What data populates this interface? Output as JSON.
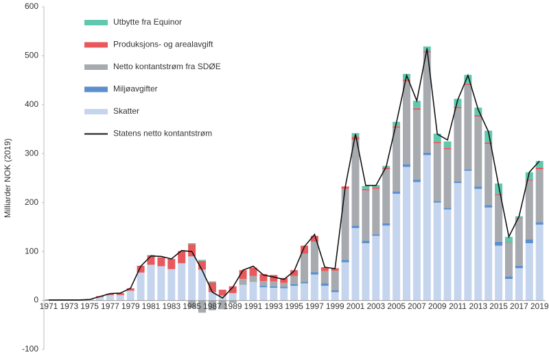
{
  "chart_data": {
    "type": "bar",
    "ylabel": "Milliarder NOK (2019)",
    "categories": [
      "1971",
      null,
      "1973",
      null,
      "1975",
      null,
      "1977",
      null,
      "1979",
      null,
      "1981",
      null,
      "1983",
      null,
      "1985",
      null,
      "1987",
      null,
      "1989",
      null,
      "1991",
      null,
      "1993",
      null,
      "1995",
      null,
      "1997",
      null,
      "1999",
      null,
      "2001",
      null,
      "2003",
      null,
      "2005",
      null,
      "2007",
      null,
      "2009",
      null,
      "2011",
      null,
      "2013",
      null,
      "2015",
      null,
      "2017",
      null,
      "2019"
    ],
    "ylim": [
      -100,
      600
    ],
    "yticks": [
      -100,
      0,
      100,
      200,
      300,
      400,
      500,
      600
    ],
    "legend": "upper left",
    "series": [
      {
        "name": "Skatter",
        "color": "#c6d5ee",
        "values": [
          0,
          0,
          0,
          1,
          2,
          7,
          11,
          11,
          20,
          57,
          73,
          70,
          64,
          76,
          90,
          63,
          17,
          10,
          15,
          32,
          38,
          27,
          26,
          25,
          30,
          35,
          53,
          30,
          17,
          78,
          148,
          117,
          132,
          153,
          218,
          273,
          242,
          297,
          200,
          186,
          240,
          265,
          228,
          190,
          112,
          44,
          66,
          117,
          155
        ]
      },
      {
        "name": "Miljøavgifter",
        "color": "#5b8fce",
        "values": [
          0,
          0,
          0,
          0,
          0,
          0,
          0,
          0,
          0,
          0,
          0,
          0,
          0,
          0,
          0,
          0,
          0,
          0,
          0,
          0,
          0,
          3,
          3,
          3,
          3,
          3,
          5,
          5,
          4,
          5,
          5,
          5,
          3,
          5,
          5,
          5,
          5,
          5,
          3,
          3,
          3,
          3,
          5,
          5,
          8,
          5,
          5,
          8,
          5
        ]
      },
      {
        "name": "Netto kontantstrøm fra SDØE",
        "color": "#a7aaae",
        "values": [
          0,
          0,
          0,
          0,
          0,
          0,
          0,
          0,
          0,
          0,
          0,
          0,
          0,
          0,
          -15,
          -25,
          -20,
          -18,
          -5,
          12,
          12,
          10,
          10,
          8,
          17,
          58,
          62,
          25,
          40,
          145,
          175,
          103,
          93,
          110,
          130,
          170,
          143,
          205,
          118,
          120,
          150,
          172,
          143,
          125,
          95,
          68,
          96,
          120,
          108
        ]
      },
      {
        "name": "Produksjons- og arealavgift",
        "color": "#e8595d",
        "values": [
          2,
          2,
          2,
          1,
          1,
          2,
          3,
          4,
          5,
          14,
          18,
          18,
          21,
          25,
          25,
          18,
          20,
          12,
          14,
          18,
          17,
          14,
          13,
          10,
          12,
          16,
          12,
          8,
          5,
          5,
          7,
          3,
          3,
          3,
          3,
          3,
          3,
          3,
          3,
          3,
          3,
          3,
          3,
          3,
          2,
          1,
          1,
          2,
          3
        ]
      },
      {
        "name": "Utbytte fra Equinor",
        "color": "#5fc8ae",
        "values": [
          0,
          0,
          0,
          0,
          0,
          0,
          0,
          0,
          0,
          0,
          2,
          0,
          0,
          0,
          2,
          2,
          2,
          0,
          0,
          0,
          0,
          0,
          0,
          0,
          0,
          0,
          0,
          0,
          0,
          0,
          7,
          6,
          5,
          4,
          9,
          12,
          15,
          9,
          17,
          13,
          16,
          18,
          15,
          24,
          22,
          12,
          4,
          15,
          14
        ]
      }
    ],
    "line": {
      "name": "Statens netto kontantstrøm",
      "color": "#111111",
      "values": [
        1,
        1,
        1,
        1,
        2,
        8,
        14,
        15,
        25,
        70,
        91,
        90,
        85,
        102,
        100,
        62,
        17,
        5,
        27,
        62,
        70,
        52,
        48,
        43,
        60,
        110,
        135,
        68,
        65,
        232,
        340,
        235,
        235,
        273,
        363,
        460,
        408,
        515,
        340,
        328,
        410,
        460,
        390,
        345,
        235,
        130,
        172,
        262,
        285
      ]
    }
  }
}
